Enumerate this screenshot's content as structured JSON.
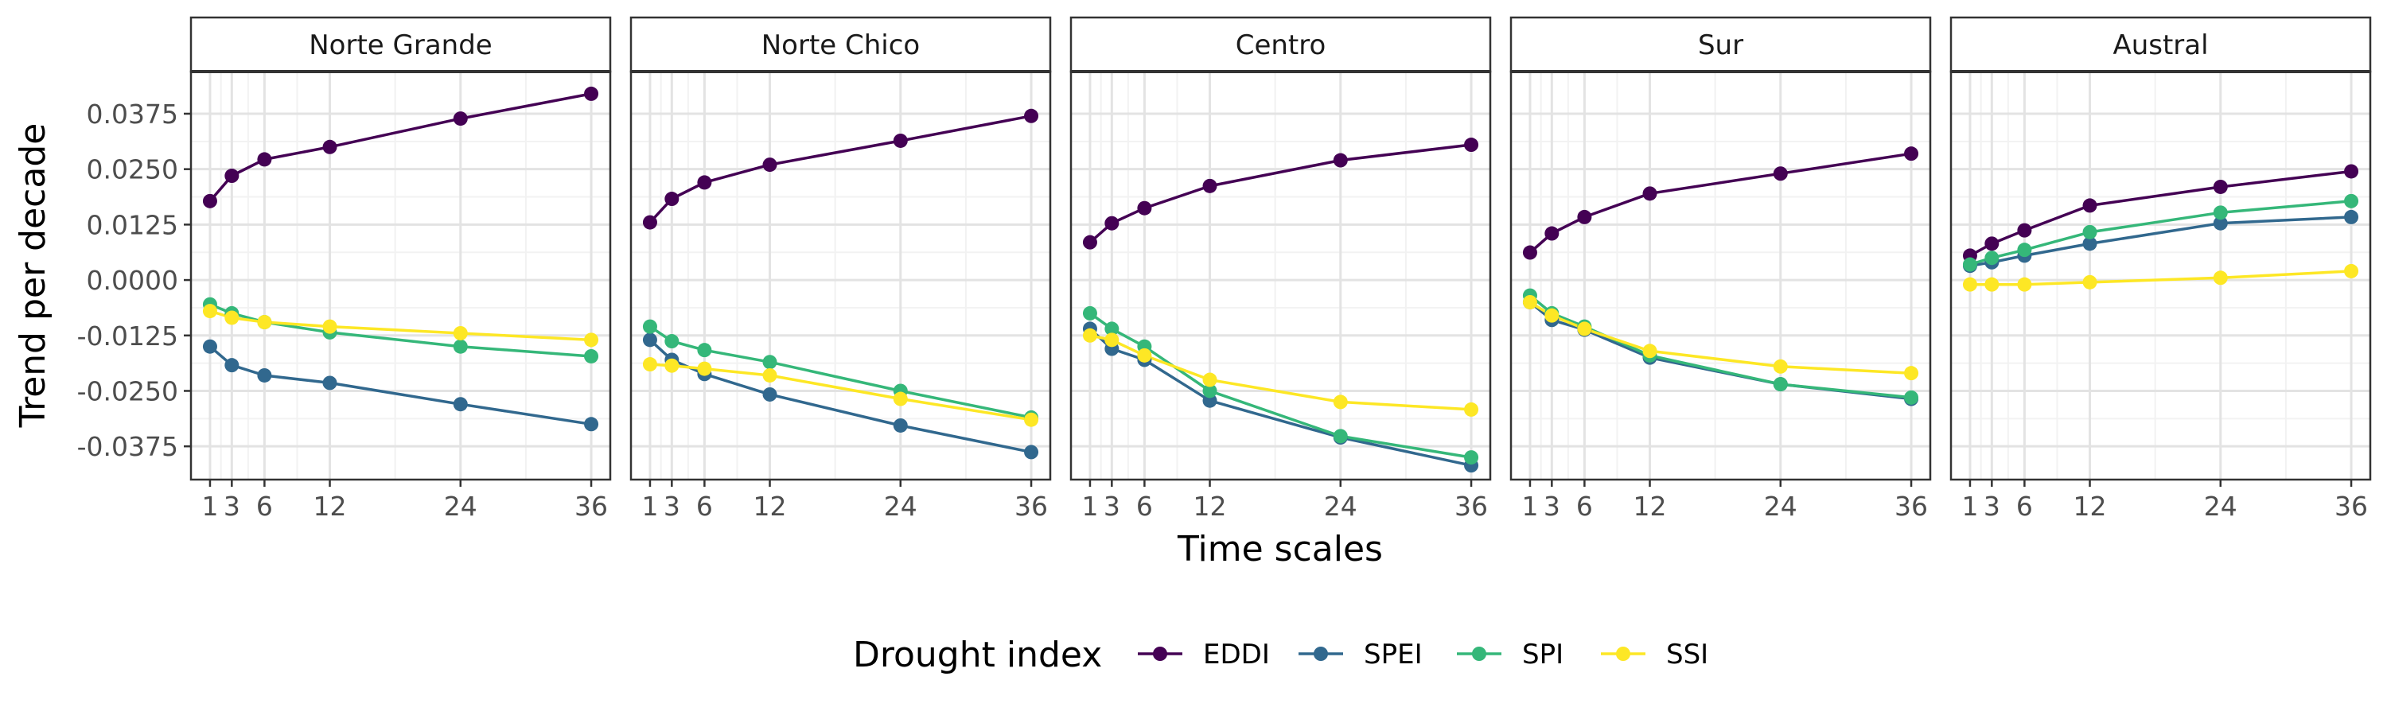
{
  "chart_data": {
    "type": "line",
    "facets": [
      "Norte Grande",
      "Norte Chico",
      "Centro",
      "Sur",
      "Austral"
    ],
    "x": [
      1,
      3,
      6,
      12,
      24,
      36
    ],
    "xlabel": "Time scales",
    "ylabel": "Trend per decade",
    "xticks": [
      "1",
      "3",
      "6",
      "12",
      "24",
      "36"
    ],
    "yticks": [
      "0.0375",
      "0.0250",
      "0.0125",
      "0.0000",
      "-0.0125",
      "-0.0250",
      "-0.0375"
    ],
    "ylim": [
      -0.045,
      0.047
    ],
    "xlim": [
      -0.75,
      37.75
    ],
    "grid": true,
    "legend_title": "Drought index",
    "legend_position": "bottom",
    "series": [
      {
        "name": "EDDI",
        "color": "#440154",
        "values": {
          "Norte Grande": [
            0.0178,
            0.0235,
            0.0272,
            0.03,
            0.0364,
            0.042
          ],
          "Norte Chico": [
            0.013,
            0.0183,
            0.022,
            0.026,
            0.0314,
            0.037
          ],
          "Centro": [
            0.0085,
            0.0128,
            0.0162,
            0.0212,
            0.027,
            0.0305
          ],
          "Sur": [
            0.0062,
            0.0105,
            0.0142,
            0.0195,
            0.024,
            0.0285
          ],
          "Austral": [
            0.0055,
            0.0082,
            0.0112,
            0.0168,
            0.021,
            0.0245
          ]
        }
      },
      {
        "name": "SPEI",
        "color": "#31688E",
        "values": {
          "Norte Grande": [
            -0.015,
            -0.0192,
            -0.0215,
            -0.0232,
            -0.028,
            -0.0325
          ],
          "Norte Chico": [
            -0.0135,
            -0.018,
            -0.0212,
            -0.0258,
            -0.0328,
            -0.0388
          ],
          "Centro": [
            -0.011,
            -0.0155,
            -0.018,
            -0.0272,
            -0.0355,
            -0.0418
          ],
          "Sur": [
            -0.005,
            -0.009,
            -0.0112,
            -0.0175,
            -0.0235,
            -0.0268
          ],
          "Austral": [
            0.0032,
            0.004,
            0.0055,
            0.0082,
            0.0128,
            0.0142
          ]
        }
      },
      {
        "name": "SPI",
        "color": "#35B779",
        "values": {
          "Norte Grande": [
            -0.0055,
            -0.0075,
            -0.0095,
            -0.0118,
            -0.015,
            -0.0172
          ],
          "Norte Chico": [
            -0.0105,
            -0.0138,
            -0.0158,
            -0.0185,
            -0.025,
            -0.031
          ],
          "Centro": [
            -0.0075,
            -0.011,
            -0.015,
            -0.025,
            -0.0352,
            -0.04
          ],
          "Sur": [
            -0.0035,
            -0.0075,
            -0.0105,
            -0.017,
            -0.0235,
            -0.0265
          ],
          "Austral": [
            0.0035,
            0.005,
            0.0068,
            0.0108,
            0.0152,
            0.0178
          ]
        }
      },
      {
        "name": "SSI",
        "color": "#FDE725",
        "values": {
          "Norte Grande": [
            -0.007,
            -0.0085,
            -0.0095,
            -0.0105,
            -0.012,
            -0.0135
          ],
          "Norte Chico": [
            -0.019,
            -0.0193,
            -0.02,
            -0.0215,
            -0.0268,
            -0.0315
          ],
          "Centro": [
            -0.0125,
            -0.0135,
            -0.017,
            -0.0225,
            -0.0275,
            -0.0292
          ],
          "Sur": [
            -0.005,
            -0.008,
            -0.011,
            -0.016,
            -0.0195,
            -0.021
          ],
          "Austral": [
            -0.001,
            -0.001,
            -0.001,
            -0.0005,
            0.0005,
            0.002
          ]
        }
      }
    ]
  }
}
